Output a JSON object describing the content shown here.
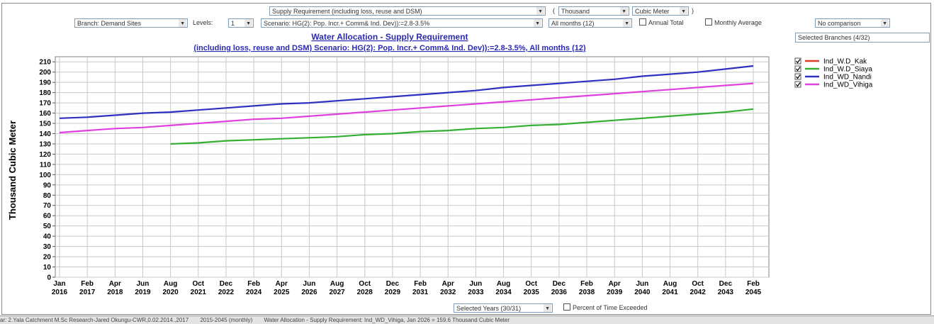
{
  "controls": {
    "variable": "Supply Requirement (including loss, reuse and DSM)",
    "open_paren": "(",
    "unit_scale": "Thousand",
    "unit": "Cubic Meter",
    "close_paren": ")",
    "branch": "Branch: Demand Sites",
    "levels_label": "Levels:",
    "levels": "1",
    "scenario": "Scenario: HG(2): Pop. Incr.+ Comm& Ind. Dev)):=2.8-3.5%",
    "months": "All months (12)",
    "annual_total": "Annual Total",
    "monthly_average": "Monthly Average",
    "comparison": "No comparison",
    "selected_branches": "Selected Branches (4/32)",
    "selected_years": "Selected Years (30/31)",
    "percent_exceeded": "Percent of Time Exceeded"
  },
  "status": [
    "ar: 2.Yala Catchment M.Sc Research-Jared Okungu-CWR,0.02.2014.,2017",
    "2015-2045 (monthly)",
    "Water Allocation - Supply Requirement: Ind_WD_Vihiga, Jan 2026 = 159.6 Thousand Cubic Meter"
  ],
  "chart_data": {
    "type": "line",
    "title": "Water Allocation - Supply Requirement",
    "subtitle": "(including loss, reuse and DSM) Scenario: HG(2): Pop. Incr.+ Comm& Ind. Dev)):=2.8-3.5%,  All months (12)",
    "y_label": "Thousand Cubic Meter",
    "categories": [
      "Jan 2016",
      "Feb 2017",
      "Apr 2018",
      "Jun 2019",
      "Aug 2020",
      "Oct 2021",
      "Dec 2022",
      "Feb 2024",
      "Apr 2025",
      "Jun 2026",
      "Aug 2027",
      "Oct 2028",
      "Dec 2029",
      "Feb 2031",
      "Apr 2032",
      "Jun 2033",
      "Aug 2034",
      "Oct 2035",
      "Dec 2036",
      "Feb 2038",
      "Apr 2039",
      "Jun 2040",
      "Aug 2041",
      "Oct 2042",
      "Dec 2043",
      "Feb 2045"
    ],
    "series": [
      {
        "name": "Ind_W.D_Kak",
        "color": "#e0402a",
        "values": [
          null,
          null,
          null,
          null,
          null,
          null,
          null,
          null,
          null,
          null,
          null,
          null,
          null,
          null,
          null,
          null,
          null,
          null,
          null,
          null,
          null,
          null,
          null,
          null,
          null,
          null
        ]
      },
      {
        "name": "Ind_W.D_Siaya",
        "color": "#33b033",
        "values": [
          null,
          null,
          null,
          null,
          130,
          131,
          133,
          134,
          135,
          136,
          137,
          139,
          140,
          142,
          143,
          145,
          146,
          148,
          149,
          151,
          153,
          155,
          157,
          159,
          161,
          164
        ]
      },
      {
        "name": "Ind_WD_Nandi",
        "color": "#3030c0",
        "values": [
          155,
          156,
          158,
          160,
          161,
          163,
          165,
          167,
          169,
          170,
          172,
          174,
          176,
          178,
          180,
          182,
          185,
          187,
          189,
          191,
          193,
          196,
          198,
          200,
          203,
          206
        ]
      },
      {
        "name": "Ind_WD_Vihiga",
        "color": "#e040e0",
        "values": [
          141,
          143,
          145,
          146,
          148,
          150,
          152,
          154,
          155,
          157,
          159,
          161,
          163,
          165,
          167,
          169,
          171,
          173,
          175,
          177,
          179,
          181,
          183,
          185,
          187,
          189
        ]
      }
    ],
    "ylim": [
      0,
      215
    ],
    "yticks": [
      0,
      10,
      20,
      30,
      40,
      50,
      60,
      70,
      80,
      90,
      100,
      110,
      120,
      130,
      140,
      150,
      160,
      170,
      180,
      190,
      200,
      210
    ],
    "grid": true,
    "legend": "right"
  }
}
